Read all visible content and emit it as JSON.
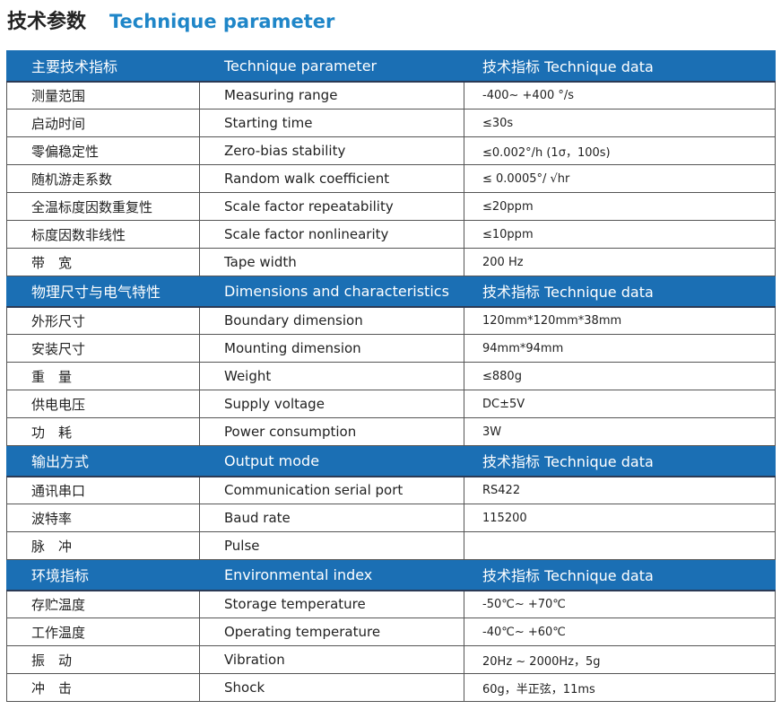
{
  "title": {
    "cn": "技术参数",
    "en": "Technique parameter"
  },
  "colors": {
    "header_bg": "#1b6fb4",
    "title_blue": "#1f86c8"
  },
  "sections": [
    {
      "header": [
        "主要技术指标",
        "Technique parameter",
        "技术指标   Technique data"
      ],
      "rows": [
        [
          "测量范围",
          "Measuring range",
          "-400~ +400 °/s"
        ],
        [
          "启动时间",
          "Starting time",
          "≤30s"
        ],
        [
          "零偏稳定性",
          "Zero-bias stability",
          "≤0.002°/h (1σ，100s)"
        ],
        [
          "随机游走系数",
          "Random walk coefficient",
          "≤ 0.0005°/ √hr"
        ],
        [
          "全温标度因数重复性",
          "Scale factor repeatability",
          "≤20ppm"
        ],
        [
          "标度因数非线性",
          "Scale factor nonlinearity",
          "≤10ppm"
        ],
        [
          "带　宽",
          "Tape width",
          "200 Hz"
        ]
      ]
    },
    {
      "header": [
        "物理尺寸与电气特性",
        "Dimensions and characteristics",
        "技术指标   Technique data"
      ],
      "rows": [
        [
          "外形尺寸",
          "Boundary dimension",
          "120mm*120mm*38mm"
        ],
        [
          "安装尺寸",
          "Mounting dimension",
          "94mm*94mm"
        ],
        [
          "重　量",
          "Weight",
          "≤880g"
        ],
        [
          "供电电压",
          "Supply voltage",
          "DC±5V"
        ],
        [
          "功　耗",
          "Power consumption",
          "3W"
        ]
      ]
    },
    {
      "header": [
        "输出方式",
        "Output mode",
        "技术指标   Technique data"
      ],
      "rows": [
        [
          "通讯串口",
          "Communication serial port",
          "RS422"
        ],
        [
          "波特率",
          "Baud rate",
          "115200"
        ],
        [
          "脉　冲",
          "Pulse",
          ""
        ]
      ]
    },
    {
      "header": [
        "环境指标",
        "Environmental index",
        "技术指标   Technique data"
      ],
      "rows": [
        [
          "存贮温度",
          "Storage temperature",
          "-50℃~ +70℃"
        ],
        [
          "工作温度",
          "Operating temperature",
          "-40℃~ +60℃"
        ],
        [
          "振　动",
          "Vibration",
          "20Hz ~ 2000Hz，5g"
        ],
        [
          "冲　击",
          "Shock",
          "60g，半正弦，11ms"
        ]
      ]
    }
  ]
}
